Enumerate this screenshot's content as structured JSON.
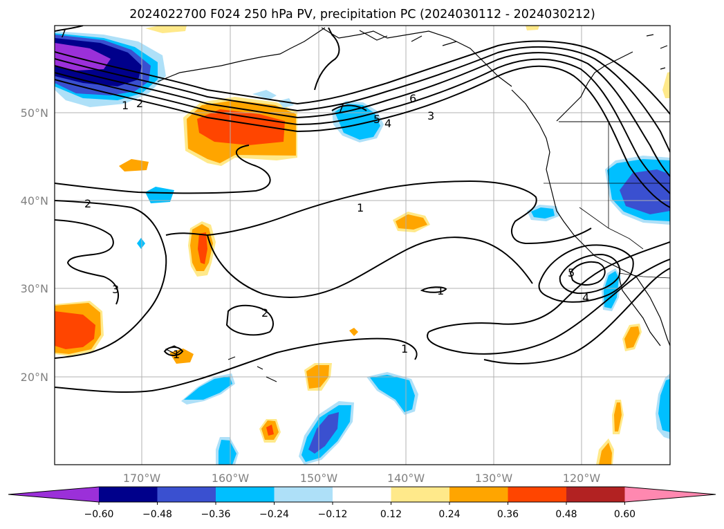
{
  "title": "2024022700 F024 250 hPa PV, precipitation PC (2024030112 - 2024030212)",
  "map": {
    "lon_labels": [
      "170°W",
      "160°W",
      "150°W",
      "140°W",
      "130°W",
      "120°W"
    ],
    "lat_labels": [
      "50°N",
      "40°N",
      "30°N",
      "20°N"
    ],
    "contour_labels": [
      "1",
      "2",
      "3",
      "4",
      "5",
      "6",
      "7"
    ]
  },
  "colorbar": {
    "ticks": [
      "−0.60",
      "−0.48",
      "−0.36",
      "−0.24",
      "−0.12",
      "0.12",
      "0.24",
      "0.36",
      "0.48",
      "0.60"
    ],
    "colors": [
      "#9b30d9",
      "#00008b",
      "#3a50d0",
      "#00bfff",
      "#aee0f8",
      "#ffffff",
      "#ffe98a",
      "#ffa500",
      "#ff4500",
      "#b22222",
      "#ff88b0"
    ]
  }
}
